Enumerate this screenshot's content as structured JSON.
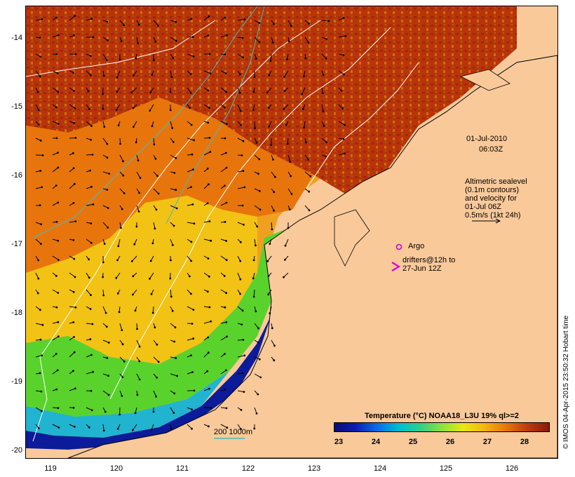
{
  "date_label": "01-Jul-2010",
  "time_label": "06:03Z",
  "altimetry_note": [
    "Altimetric sealevel",
    "(0.1m contours)",
    "and velocity for",
    "01-Jul 06Z",
    "0.5m/s (1kt 24h)"
  ],
  "argo_label": "Argo",
  "drifters_note": [
    "drifters@12h to",
    "27-Jun 12Z"
  ],
  "isobath_label": "200  1000m",
  "colorbar_title": "Temperature (°C) NOAA18_L3U 19% ql>=2",
  "colorbar_ticks": [
    "23",
    "24",
    "25",
    "26",
    "27",
    "28"
  ],
  "y_ticks": [
    "-14",
    "-15",
    "-16",
    "-17",
    "-18",
    "-19",
    "-20"
  ],
  "x_ticks": [
    "119",
    "120",
    "121",
    "122",
    "123",
    "124",
    "125",
    "126"
  ],
  "credit": "© IMOS 04-Apr-2015 23:50:32 Hobart time",
  "colors": {
    "land": "#f9c99a",
    "argo": "#cc00cc",
    "contour": "#ffffff",
    "isobath": "#44bbbb"
  }
}
